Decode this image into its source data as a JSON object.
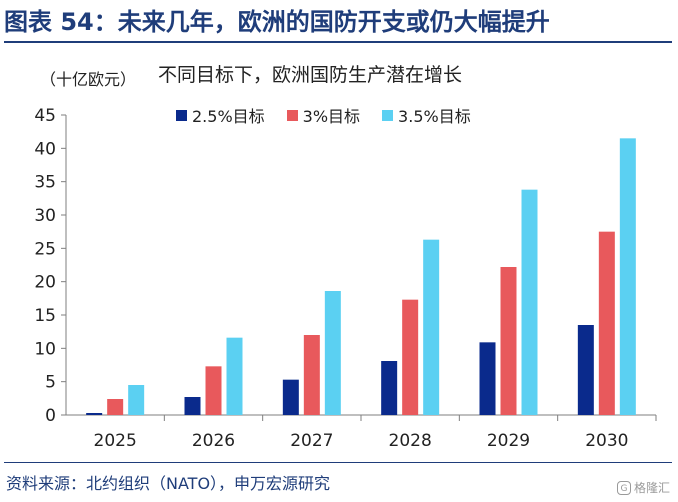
{
  "figure_title": "图表 54：未来几年，欧洲的国防开支或仍大幅提升",
  "unit": "（十亿欧元）",
  "source": "资料来源：北约组织（NATO），申万宏源研究",
  "watermark": "格隆汇",
  "colors": {
    "title": "#1f3d7a",
    "series_2_5": "#0a2a8c",
    "series_3": "#e8595c",
    "series_3_5": "#5bd0f2"
  },
  "chart_data": {
    "type": "bar",
    "title": "不同目标下，欧洲国防生产潜在增长",
    "categories": [
      "2025",
      "2026",
      "2027",
      "2028",
      "2029",
      "2030"
    ],
    "series": [
      {
        "name": "2.5%目标",
        "values": [
          0.3,
          2.7,
          5.3,
          8.1,
          10.9,
          13.5
        ]
      },
      {
        "name": "3%目标",
        "values": [
          2.4,
          7.3,
          12.0,
          17.3,
          22.2,
          27.5
        ]
      },
      {
        "name": "3.5%目标",
        "values": [
          4.5,
          11.6,
          18.6,
          26.3,
          33.8,
          41.5
        ]
      }
    ],
    "ylim": [
      0,
      45
    ],
    "yticks": [
      "0",
      "5",
      "10",
      "15",
      "20",
      "25",
      "30",
      "35",
      "40",
      "45"
    ],
    "grid": false,
    "legend_position": "top"
  }
}
